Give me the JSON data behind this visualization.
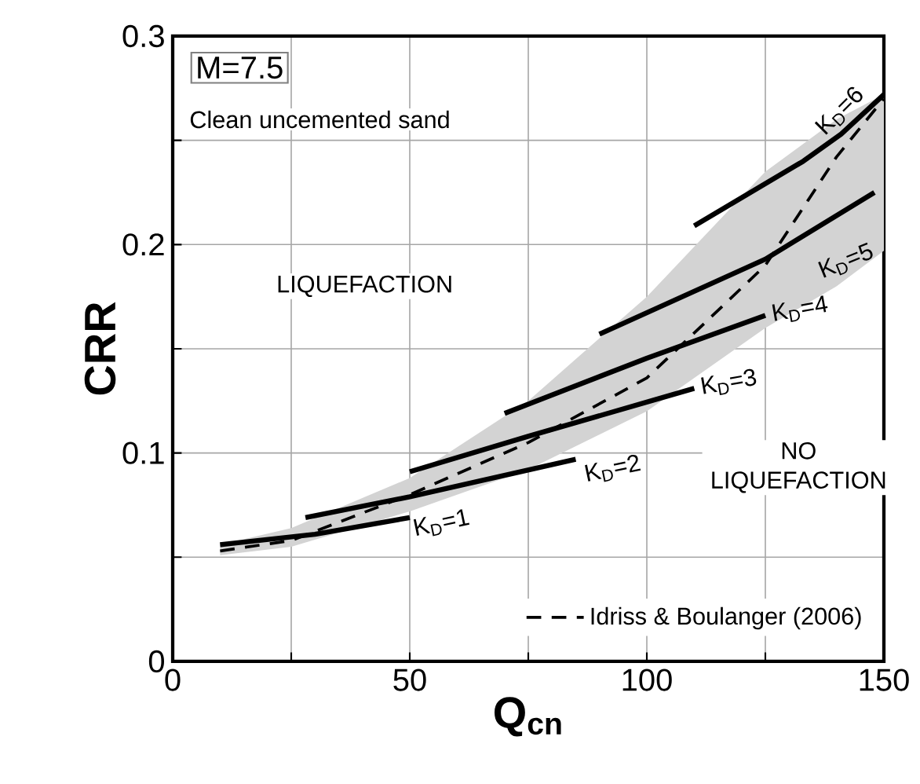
{
  "chart_data": {
    "type": "line",
    "xlabel": "Q$_{cn}$",
    "ylabel": "CRR",
    "xlim": [
      0,
      150
    ],
    "ylim": [
      0,
      0.3
    ],
    "xticks": [
      0,
      {
        "value": 25,
        "label": null
      },
      50,
      {
        "value": 75,
        "label": null
      },
      100,
      {
        "value": 125,
        "label": null
      },
      150
    ],
    "yticks": [
      0,
      {
        "value": 0.05,
        "label": null
      },
      0.1,
      {
        "value": 0.15,
        "label": null
      },
      0.2,
      {
        "value": 0.25,
        "label": null
      },
      0.3
    ],
    "grid": true,
    "legend": "bottom right",
    "annotations": [
      "M=7.5",
      "Clean uncemented sand",
      "LIQUEFACTION",
      "NO LIQUEFACTION"
    ],
    "series": [
      {
        "name": "Idriss & Boulanger (2006)",
        "color": "#000000",
        "line_style": "dashed",
        "x": [
          10,
          25,
          50,
          75,
          100,
          125,
          140,
          150
        ],
        "values": [
          0.053,
          0.058,
          0.08,
          0.105,
          0.136,
          0.19,
          0.242,
          0.27
        ],
        "lower": [
          0.051,
          0.055,
          0.072,
          0.092,
          0.12,
          0.16,
          0.18,
          0.197
        ],
        "upper": [
          0.056,
          0.064,
          0.088,
          0.125,
          0.175,
          0.235,
          0.26,
          0.272
        ]
      },
      {
        "name": "K$_{D}$=1",
        "color": "#000000",
        "line_style": "solid",
        "x": [
          10,
          30,
          50
        ],
        "values": [
          0.056,
          0.061,
          0.069
        ]
      },
      {
        "name": "K$_{D}$=2",
        "color": "#000000",
        "line_style": "solid",
        "x": [
          28,
          50,
          85
        ],
        "values": [
          0.069,
          0.079,
          0.097
        ]
      },
      {
        "name": "K$_{D}$=3",
        "color": "#000000",
        "line_style": "solid",
        "x": [
          50,
          75,
          110
        ],
        "values": [
          0.091,
          0.108,
          0.131
        ]
      },
      {
        "name": "K$_{D}$=4",
        "color": "#000000",
        "line_style": "solid",
        "x": [
          70,
          100,
          125
        ],
        "values": [
          0.119,
          0.1455,
          0.166
        ]
      },
      {
        "name": "K$_{D}$=5",
        "color": "#000000",
        "line_style": "solid",
        "x": [
          90,
          125,
          148
        ],
        "values": [
          0.157,
          0.193,
          0.225
        ]
      },
      {
        "name": "K$_{D}$=6",
        "color": "#000000",
        "line_style": "solid",
        "x": [
          110,
          133,
          141,
          150
        ],
        "values": [
          0.209,
          0.24,
          0.253,
          0.272
        ]
      }
    ]
  }
}
